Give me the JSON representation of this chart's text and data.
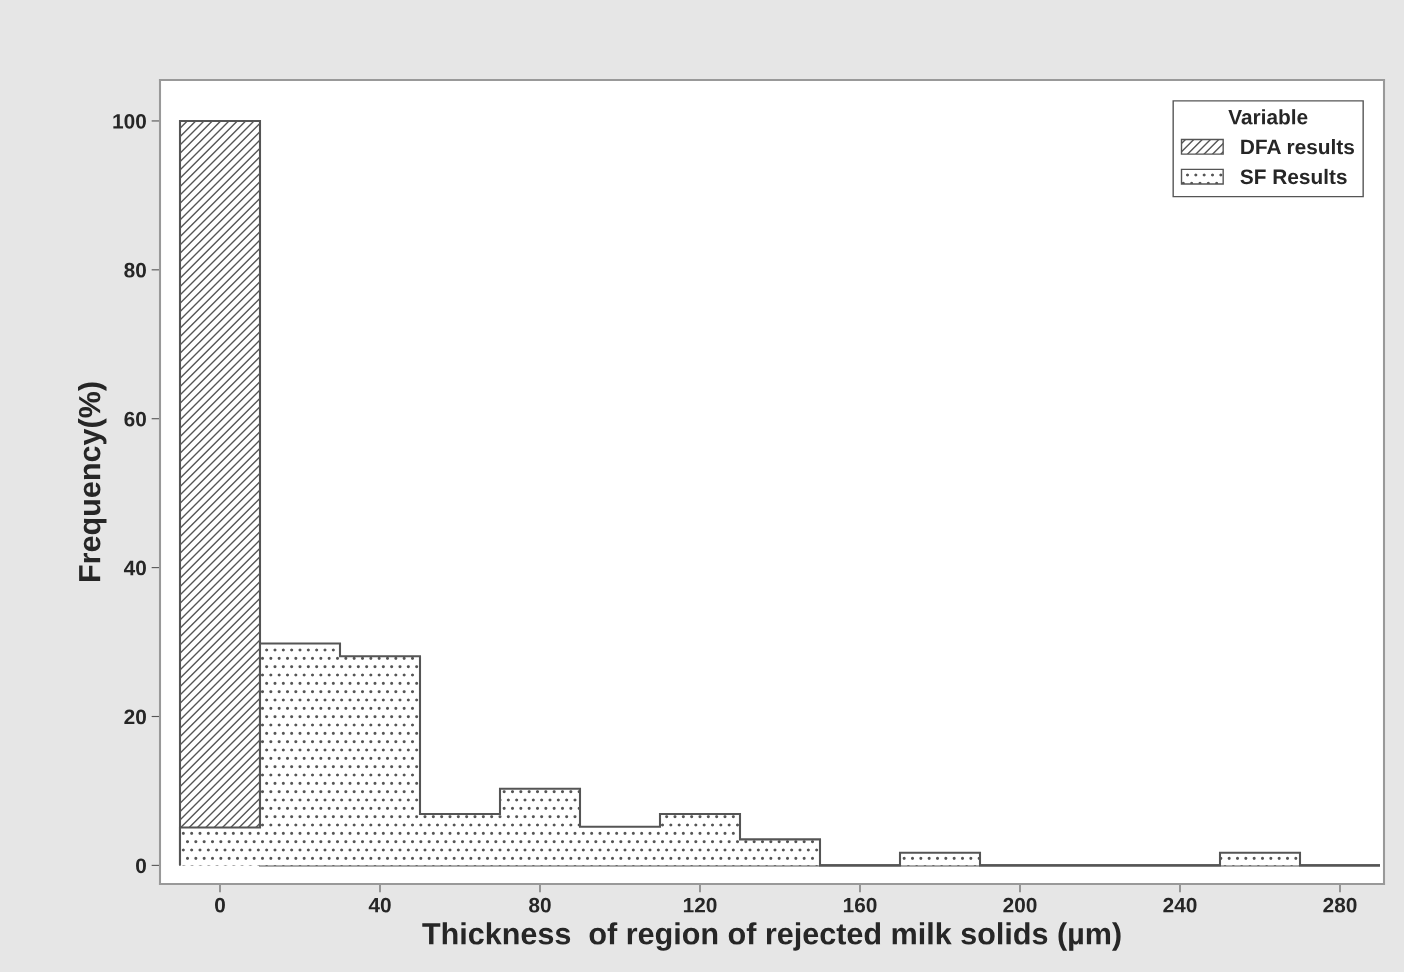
{
  "chart_data": {
    "type": "histogram",
    "xlabel": "Thickness  of region of rejected milk solids (µm)",
    "ylabel": "Frequency(%)",
    "legend_title": "Variable",
    "bins": [
      -10,
      10,
      30,
      50,
      70,
      90,
      110,
      130,
      150,
      170,
      190,
      210,
      230,
      250,
      270,
      290
    ],
    "series": [
      {
        "name": "DFA results",
        "color": "#555555",
        "values": [
          100,
          0,
          0,
          0,
          0,
          0,
          0,
          0,
          0,
          0,
          0,
          0,
          0,
          0,
          0
        ]
      },
      {
        "name": "SF Results",
        "color": "#555555",
        "values": [
          5.1,
          29.8,
          28.1,
          6.9,
          10.3,
          5.2,
          6.9,
          3.5,
          0,
          1.7,
          0,
          0,
          0,
          1.7,
          0
        ]
      }
    ],
    "xlim": [
      -15,
      291
    ],
    "ylim": [
      -2.5,
      105.5
    ],
    "xticks": [
      0,
      40,
      80,
      120,
      160,
      200,
      240,
      280
    ],
    "yticks": [
      0,
      20,
      40,
      60,
      80,
      100
    ],
    "grid": false,
    "legend": "top right"
  }
}
